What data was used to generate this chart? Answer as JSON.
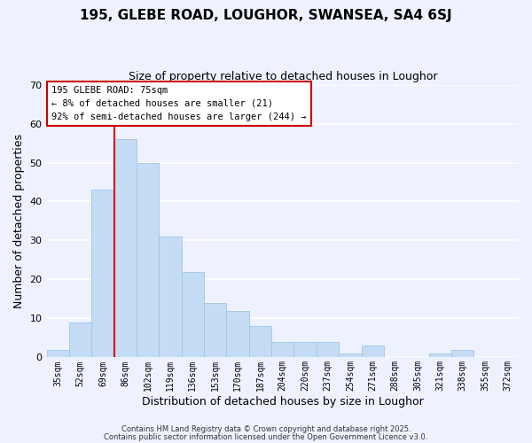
{
  "title_line1": "195, GLEBE ROAD, LOUGHOR, SWANSEA, SA4 6SJ",
  "title_line2": "Size of property relative to detached houses in Loughor",
  "xlabel": "Distribution of detached houses by size in Loughor",
  "ylabel": "Number of detached properties",
  "bar_labels": [
    "35sqm",
    "52sqm",
    "69sqm",
    "86sqm",
    "102sqm",
    "119sqm",
    "136sqm",
    "153sqm",
    "170sqm",
    "187sqm",
    "204sqm",
    "220sqm",
    "237sqm",
    "254sqm",
    "271sqm",
    "288sqm",
    "305sqm",
    "321sqm",
    "338sqm",
    "355sqm",
    "372sqm"
  ],
  "bar_values": [
    2,
    9,
    43,
    56,
    50,
    31,
    22,
    14,
    12,
    8,
    4,
    4,
    4,
    1,
    3,
    0,
    0,
    1,
    2,
    0,
    0
  ],
  "bar_color": "#c5ddf4",
  "bar_edge_color": "#a0c4e8",
  "vline_x": 2.5,
  "vline_color": "#dd0000",
  "ylim": [
    0,
    70
  ],
  "yticks": [
    0,
    10,
    20,
    30,
    40,
    50,
    60,
    70
  ],
  "annotation_title": "195 GLEBE ROAD: 75sqm",
  "annotation_line1": "← 8% of detached houses are smaller (21)",
  "annotation_line2": "92% of semi-detached houses are larger (244) →",
  "bg_color": "#eef2ff",
  "plot_bg_color": "#eef2ff",
  "footer_line1": "Contains HM Land Registry data © Crown copyright and database right 2025.",
  "footer_line2": "Contains public sector information licensed under the Open Government Licence v3.0."
}
